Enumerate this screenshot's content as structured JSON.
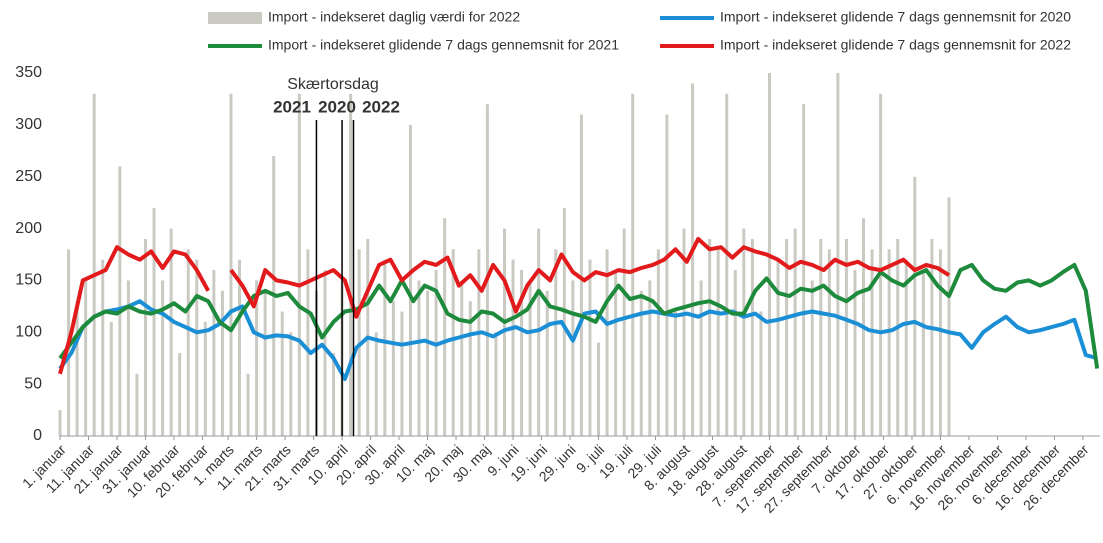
{
  "chart_data": {
    "type": "line",
    "annotation": "Skærtorsdag",
    "holiday_lines": [
      {
        "label": "2021",
        "x": 91,
        "color": "#1e8a3c"
      },
      {
        "label": "2020",
        "x": 100,
        "color": "#1a8fd6"
      },
      {
        "label": "2022",
        "x": 104,
        "color": "#e31a1c"
      }
    ],
    "xlim": [
      1,
      366
    ],
    "xticks": [
      {
        "value": 1,
        "label": "1. januar"
      },
      {
        "value": 11,
        "label": "11. januar"
      },
      {
        "value": 21,
        "label": "21. januar"
      },
      {
        "value": 31,
        "label": "31. januar"
      },
      {
        "value": 41,
        "label": "10. februar"
      },
      {
        "value": 51,
        "label": "20. februar"
      },
      {
        "value": 60,
        "label": "1. marts"
      },
      {
        "value": 70,
        "label": "11. marts"
      },
      {
        "value": 80,
        "label": "21. marts"
      },
      {
        "value": 90,
        "label": "31. marts"
      },
      {
        "value": 100,
        "label": "10. april"
      },
      {
        "value": 110,
        "label": "20. april"
      },
      {
        "value": 120,
        "label": "30. april"
      },
      {
        "value": 130,
        "label": "10. maj"
      },
      {
        "value": 140,
        "label": "20. maj"
      },
      {
        "value": 150,
        "label": "30. maj"
      },
      {
        "value": 160,
        "label": "9. juni"
      },
      {
        "value": 170,
        "label": "19. juni"
      },
      {
        "value": 180,
        "label": "29. juni"
      },
      {
        "value": 190,
        "label": "9. juli"
      },
      {
        "value": 200,
        "label": "19. juli"
      },
      {
        "value": 210,
        "label": "29. juli"
      },
      {
        "value": 220,
        "label": "8. august"
      },
      {
        "value": 230,
        "label": "18. august"
      },
      {
        "value": 240,
        "label": "28. august"
      },
      {
        "value": 250,
        "label": "7. september"
      },
      {
        "value": 260,
        "label": "17. september"
      },
      {
        "value": 270,
        "label": "27. september"
      },
      {
        "value": 280,
        "label": "7. oktober"
      },
      {
        "value": 290,
        "label": "17. oktober"
      },
      {
        "value": 300,
        "label": "27. oktober"
      },
      {
        "value": 310,
        "label": "6. november"
      },
      {
        "value": 320,
        "label": "16. november"
      },
      {
        "value": 330,
        "label": "26. november"
      },
      {
        "value": 340,
        "label": "6. december"
      },
      {
        "value": 350,
        "label": "16. december"
      },
      {
        "value": 360,
        "label": "26. december"
      }
    ],
    "ylim": [
      0,
      350
    ],
    "yticks": [
      0,
      50,
      100,
      150,
      200,
      250,
      300,
      350
    ],
    "grid": false,
    "x": [
      1,
      5,
      9,
      13,
      17,
      21,
      25,
      29,
      33,
      37,
      41,
      45,
      49,
      53,
      57,
      61,
      65,
      69,
      73,
      77,
      81,
      85,
      89,
      93,
      97,
      101,
      105,
      109,
      113,
      117,
      121,
      125,
      129,
      133,
      137,
      141,
      145,
      149,
      153,
      157,
      161,
      165,
      169,
      173,
      177,
      181,
      185,
      189,
      193,
      197,
      201,
      205,
      209,
      213,
      217,
      221,
      225,
      229,
      233,
      237,
      241,
      245,
      249,
      253,
      257,
      261,
      265,
      269,
      273,
      277,
      281,
      285,
      289,
      293,
      297,
      301,
      305,
      309,
      313,
      317,
      321,
      325,
      329,
      333,
      337,
      341,
      345,
      349,
      353,
      357,
      361,
      365
    ],
    "series": [
      {
        "name": "Import - indekseret daglig værdi for 2022",
        "type": "bar",
        "color": "#cacac2",
        "x": [
          1,
          4,
          7,
          10,
          13,
          16,
          19,
          22,
          25,
          28,
          31,
          34,
          37,
          40,
          43,
          46,
          49,
          52,
          55,
          58,
          61,
          64,
          67,
          70,
          73,
          76,
          79,
          82,
          85,
          88,
          91,
          94,
          97,
          100,
          103,
          106,
          109,
          112,
          115,
          118,
          121,
          124,
          127,
          130,
          133,
          136,
          139,
          142,
          145,
          148,
          151,
          154,
          157,
          160,
          163,
          166,
          169,
          172,
          175,
          178,
          181,
          184,
          187,
          190,
          193,
          196,
          199,
          202,
          205,
          208,
          211,
          214,
          217,
          220,
          223,
          226,
          229,
          232,
          235,
          238,
          241,
          244,
          247,
          250,
          253,
          256,
          259,
          262,
          265,
          268,
          271,
          274,
          277,
          280,
          283,
          286,
          289,
          292,
          295,
          298,
          301,
          304,
          307,
          310,
          313
        ],
        "values": [
          25,
          180,
          130,
          150,
          330,
          170,
          110,
          260,
          150,
          60,
          190,
          220,
          150,
          200,
          80,
          180,
          170,
          110,
          160,
          140,
          330,
          170,
          60,
          150,
          140,
          270,
          120,
          100,
          330,
          180,
          140,
          160,
          80,
          150,
          330,
          180,
          190,
          100,
          170,
          130,
          120,
          300,
          150,
          140,
          160,
          210,
          180,
          150,
          130,
          180,
          320,
          100,
          200,
          170,
          160,
          150,
          200,
          140,
          180,
          220,
          150,
          310,
          170,
          90,
          180,
          160,
          200,
          330,
          140,
          150,
          180,
          310,
          120,
          200,
          340,
          150,
          190,
          180,
          330,
          160,
          200,
          190,
          120,
          350,
          170,
          190,
          200,
          320,
          150,
          190,
          180,
          350,
          190,
          160,
          210,
          180,
          330,
          180,
          190,
          170,
          250,
          160,
          190,
          180,
          230
        ]
      },
      {
        "name": "Import - indekseret glidende 7 dags gennemsnit for 2020",
        "type": "line",
        "color": "#1a8fd6",
        "values": [
          65,
          80,
          105,
          115,
          120,
          122,
          125,
          130,
          122,
          118,
          110,
          105,
          100,
          102,
          108,
          120,
          125,
          100,
          95,
          97,
          96,
          92,
          80,
          88,
          75,
          55,
          85,
          95,
          92,
          90,
          88,
          90,
          92,
          88,
          92,
          95,
          98,
          100,
          96,
          102,
          105,
          100,
          102,
          108,
          110,
          92,
          118,
          120,
          108,
          112,
          115,
          118,
          120,
          118,
          116,
          118,
          115,
          120,
          118,
          120,
          115,
          118,
          110,
          112,
          115,
          118,
          120,
          118,
          116,
          112,
          108,
          102,
          100,
          102,
          108,
          110,
          105,
          103,
          100,
          98,
          85,
          100,
          108,
          115,
          105,
          100,
          102,
          105,
          108,
          112,
          78,
          75
        ]
      },
      {
        "name": "Import - indekseret glidende 7 dags gennemsnit for 2021",
        "type": "line",
        "color": "#1e8a3c",
        "values": [
          75,
          90,
          105,
          115,
          120,
          118,
          125,
          120,
          118,
          122,
          128,
          120,
          135,
          130,
          110,
          102,
          120,
          135,
          140,
          135,
          138,
          125,
          118,
          95,
          110,
          120,
          122,
          128,
          145,
          130,
          150,
          130,
          145,
          140,
          118,
          112,
          110,
          120,
          118,
          110,
          115,
          122,
          140,
          125,
          122,
          118,
          115,
          110,
          130,
          145,
          132,
          135,
          130,
          118,
          122,
          125,
          128,
          130,
          125,
          118,
          118,
          140,
          152,
          138,
          135,
          142,
          140,
          145,
          135,
          130,
          138,
          142,
          158,
          150,
          145,
          155,
          160,
          145,
          135,
          160,
          165,
          150,
          142,
          140,
          148,
          150,
          145,
          150,
          158,
          165,
          140,
          65
        ]
      },
      {
        "name": "Import - indekseret glidende 7 dags gennemsnit for 2022",
        "type": "line",
        "color": "#e31a1c",
        "values": [
          60,
          100,
          150,
          155,
          160,
          182,
          175,
          170,
          178,
          162,
          178,
          175,
          160,
          140,
          null,
          160,
          145,
          125,
          160,
          150,
          148,
          145,
          150,
          155,
          160,
          150,
          115,
          140,
          165,
          170,
          150,
          160,
          168,
          165,
          172,
          145,
          155,
          140,
          165,
          150,
          120,
          145,
          160,
          150,
          175,
          158,
          150,
          158,
          155,
          160,
          158,
          162,
          165,
          170,
          180,
          168,
          190,
          180,
          182,
          172,
          182,
          178,
          175,
          170,
          162,
          168,
          165,
          160,
          170,
          165,
          168,
          162,
          160,
          165,
          170,
          160,
          165,
          162,
          155,
          null,
          null,
          null,
          null,
          null,
          null,
          null,
          null,
          null,
          null,
          null,
          null,
          null
        ]
      }
    ]
  }
}
